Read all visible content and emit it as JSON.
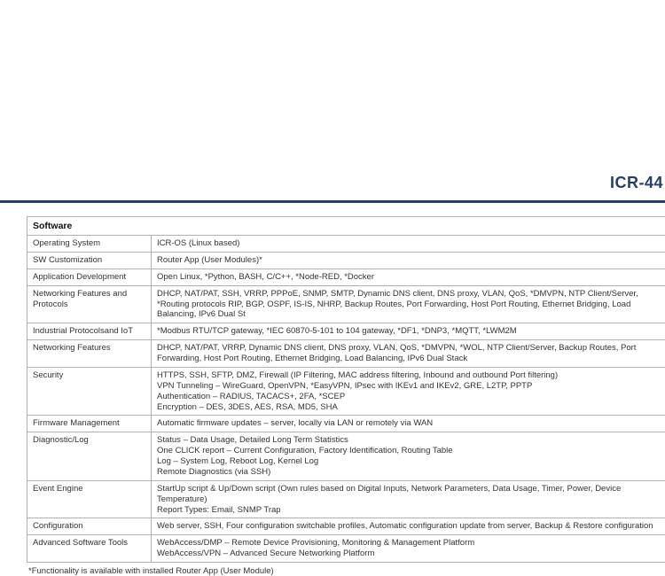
{
  "header": {
    "title": "ICR-44",
    "title_color": "#2a3e62",
    "rule_color": "#2a3e62"
  },
  "table": {
    "section_title": "Software",
    "rows": [
      {
        "label": "Operating System",
        "value": "ICR-OS (Linux based)"
      },
      {
        "label": "SW Customization",
        "value": "Router App (User Modules)*"
      },
      {
        "label": "Application Development",
        "value": "Open Linux, *Python, BASH, C/C++, *Node-RED, *Docker"
      },
      {
        "label": "Networking Features and Protocols",
        "value": "DHCP, NAT/PAT, SSH, VRRP, PPPoE, SNMP, SMTP, Dynamic DNS client, DNS proxy, VLAN, QoS, *DMVPN, NTP Client/Server, *Routing protocols RIP, BGP, OSPF, IS-IS, NHRP, Backup Routes, Port Forwarding, Host Port Routing, Ethernet Bridging, Load Balancing, IPv6 Dual St"
      },
      {
        "label": "Industrial Protocolsand IoT",
        "value": "*Modbus RTU/TCP gateway, *IEC 60870-5-101 to 104 gateway, *DF1, *DNP3, *MQTT, *LWM2M"
      },
      {
        "label": "Networking Features",
        "value": "DHCP, NAT/PAT, VRRP, Dynamic DNS client, DNS proxy, VLAN, QoS, *DMVPN, *WOL, NTP Client/Server, Backup Routes, Port Forwarding, Host Port Routing, Ethernet Bridging, Load Balancing, IPv6 Dual Stack"
      },
      {
        "label": "Security",
        "value": "HTTPS, SSH, SFTP, DMZ, Firewall (IP Filtering, MAC address filtering, Inbound and outbound Port filtering)\nVPN Tunneling – WireGuard, OpenVPN, *EasyVPN, IPsec with IKEv1 and IKEv2, GRE, L2TP, PPTP\nAuthentication – RADIUS, TACACS+, 2FA, *SCEP\nEncryption – DES, 3DES, AES, RSA, MD5, SHA"
      },
      {
        "label": "Firmware Management",
        "value": "Automatic firmware updates – server, locally via LAN or remotely via WAN"
      },
      {
        "label": "Diagnostic/Log",
        "value": "Status – Data Usage, Detailed Long Term Statistics\nOne CLICK report – Current Configuration, Factory Identification, Routing Table\nLog – System Log, Reboot Log, Kernel Log\nRemote Diagnostics (via SSH)"
      },
      {
        "label": "Event Engine",
        "value": "StartUp script & Up/Down script (Own rules based on Digital Inputs, Network Parameters, Data Usage, Timer, Power, Device Temperature)\nReport Types: Email, SNMP Trap"
      },
      {
        "label": "Configuration",
        "value": "Web server, SSH, Four configuration switchable profiles, Automatic configuration update from server, Backup & Restore configuration"
      },
      {
        "label": "Advanced Software Tools",
        "value": "WebAccess/DMP – Remote Device Provisioning, Monitoring & Management Platform\nWebAccess/VPN – Advanced Secure Networking Platform"
      }
    ]
  },
  "footnote": "*Functionality is available with installed Router App (User Module)"
}
